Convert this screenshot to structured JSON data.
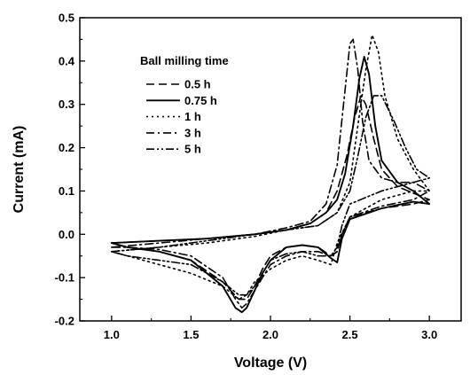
{
  "chart_data": {
    "type": "line",
    "title": "",
    "xlabel": "Voltage (V)",
    "ylabel": "Current (mA)",
    "xlim": [
      0.8,
      3.2
    ],
    "ylim": [
      -0.2,
      0.5
    ],
    "xticks": [
      1.0,
      1.5,
      2.0,
      2.5,
      3.0
    ],
    "xtick_labels": [
      "1.0",
      "1.5",
      "2.0",
      "2.5",
      "3.0"
    ],
    "yticks": [
      -0.2,
      -0.1,
      0.0,
      0.1,
      0.2,
      0.3,
      0.4,
      0.5
    ],
    "ytick_labels": [
      "-0.2",
      "-0.1",
      "0.0",
      "0.1",
      "0.2",
      "0.3",
      "0.4",
      "0.5"
    ],
    "grid": false,
    "legend": {
      "title": "Ball milling time",
      "placement": "top-left"
    },
    "series": [
      {
        "name": "0.5 h",
        "dash": "dashed",
        "x": [
          1.0,
          1.3,
          1.6,
          1.9,
          2.1,
          2.25,
          2.35,
          2.42,
          2.48,
          2.53,
          2.57,
          2.6,
          2.65,
          2.7,
          2.8,
          2.9,
          3.0,
          2.9,
          2.7,
          2.5,
          2.45,
          2.42,
          2.38,
          2.3,
          2.2,
          2.1,
          2.0,
          1.95,
          1.9,
          1.85,
          1.8,
          1.7,
          1.5,
          1.3,
          1.1,
          1.0
        ],
        "y": [
          -0.02,
          -0.015,
          -0.01,
          0.0,
          0.01,
          0.025,
          0.05,
          0.1,
          0.18,
          0.27,
          0.32,
          0.3,
          0.22,
          0.15,
          0.11,
          0.095,
          0.08,
          0.07,
          0.06,
          0.04,
          0.0,
          -0.04,
          -0.05,
          -0.03,
          -0.025,
          -0.03,
          -0.05,
          -0.08,
          -0.12,
          -0.15,
          -0.15,
          -0.11,
          -0.06,
          -0.04,
          -0.03,
          -0.02
        ]
      },
      {
        "name": "0.75 h",
        "dash": "solid",
        "x": [
          1.0,
          1.3,
          1.6,
          1.9,
          2.1,
          2.25,
          2.35,
          2.42,
          2.47,
          2.52,
          2.56,
          2.59,
          2.62,
          2.66,
          2.7,
          2.8,
          2.9,
          3.0,
          2.9,
          2.7,
          2.5,
          2.45,
          2.42,
          2.38,
          2.3,
          2.2,
          2.1,
          2.0,
          1.95,
          1.9,
          1.85,
          1.82,
          1.78,
          1.7,
          1.5,
          1.3,
          1.1,
          1.0
        ],
        "y": [
          -0.02,
          -0.015,
          -0.01,
          0.0,
          0.01,
          0.025,
          0.05,
          0.08,
          0.14,
          0.25,
          0.36,
          0.41,
          0.37,
          0.25,
          0.17,
          0.12,
          0.1,
          0.07,
          0.075,
          0.06,
          0.035,
          -0.01,
          -0.065,
          -0.055,
          -0.03,
          -0.025,
          -0.03,
          -0.06,
          -0.09,
          -0.13,
          -0.17,
          -0.18,
          -0.17,
          -0.12,
          -0.06,
          -0.04,
          -0.03,
          -0.02
        ]
      },
      {
        "name": "1 h",
        "dash": "dotted",
        "x": [
          1.0,
          1.3,
          1.6,
          1.9,
          2.1,
          2.3,
          2.42,
          2.5,
          2.55,
          2.6,
          2.64,
          2.68,
          2.72,
          2.8,
          2.9,
          3.0,
          2.9,
          2.7,
          2.5,
          2.42,
          2.38,
          2.3,
          2.2,
          2.1,
          2.0,
          1.9,
          1.85,
          1.8,
          1.7,
          1.5,
          1.3,
          1.1,
          1.0
        ],
        "y": [
          -0.04,
          -0.03,
          -0.02,
          -0.005,
          0.01,
          0.02,
          0.05,
          0.12,
          0.25,
          0.38,
          0.46,
          0.42,
          0.32,
          0.22,
          0.15,
          0.1,
          0.1,
          0.08,
          0.04,
          -0.02,
          -0.07,
          -0.06,
          -0.05,
          -0.06,
          -0.08,
          -0.11,
          -0.14,
          -0.15,
          -0.12,
          -0.09,
          -0.07,
          -0.05,
          -0.04
        ]
      },
      {
        "name": "3 h",
        "dash": "dashdot",
        "x": [
          1.0,
          1.3,
          1.6,
          1.9,
          2.1,
          2.25,
          2.35,
          2.42,
          2.46,
          2.5,
          2.52,
          2.55,
          2.58,
          2.62,
          2.7,
          2.8,
          2.9,
          3.0,
          2.9,
          2.7,
          2.5,
          2.45,
          2.42,
          2.38,
          2.3,
          2.2,
          2.1,
          2.0,
          1.95,
          1.9,
          1.85,
          1.82,
          1.78,
          1.7,
          1.5,
          1.3,
          1.1,
          1.0
        ],
        "y": [
          -0.03,
          -0.02,
          -0.01,
          0.0,
          0.015,
          0.03,
          0.07,
          0.16,
          0.3,
          0.44,
          0.45,
          0.38,
          0.26,
          0.17,
          0.13,
          0.12,
          0.12,
          0.1,
          0.08,
          0.065,
          0.04,
          0.0,
          -0.04,
          -0.05,
          -0.04,
          -0.04,
          -0.05,
          -0.07,
          -0.1,
          -0.13,
          -0.16,
          -0.17,
          -0.15,
          -0.1,
          -0.05,
          -0.035,
          -0.03,
          -0.03
        ]
      },
      {
        "name": "5 h",
        "dash": "dashdotdot",
        "x": [
          1.0,
          1.3,
          1.6,
          1.9,
          2.1,
          2.3,
          2.42,
          2.5,
          2.55,
          2.6,
          2.65,
          2.7,
          2.78,
          2.85,
          2.92,
          3.0,
          2.9,
          2.7,
          2.5,
          2.45,
          2.42,
          2.38,
          2.3,
          2.2,
          2.1,
          2.0,
          1.95,
          1.9,
          1.85,
          1.8,
          1.7,
          1.5,
          1.3,
          1.1,
          1.0
        ],
        "y": [
          -0.04,
          -0.03,
          -0.015,
          0.0,
          0.01,
          0.02,
          0.05,
          0.1,
          0.18,
          0.27,
          0.32,
          0.32,
          0.26,
          0.2,
          0.15,
          0.13,
          0.12,
          0.1,
          0.07,
          0.02,
          -0.03,
          -0.05,
          -0.05,
          -0.04,
          -0.045,
          -0.06,
          -0.09,
          -0.12,
          -0.14,
          -0.14,
          -0.11,
          -0.07,
          -0.06,
          -0.05,
          -0.04
        ]
      }
    ]
  }
}
